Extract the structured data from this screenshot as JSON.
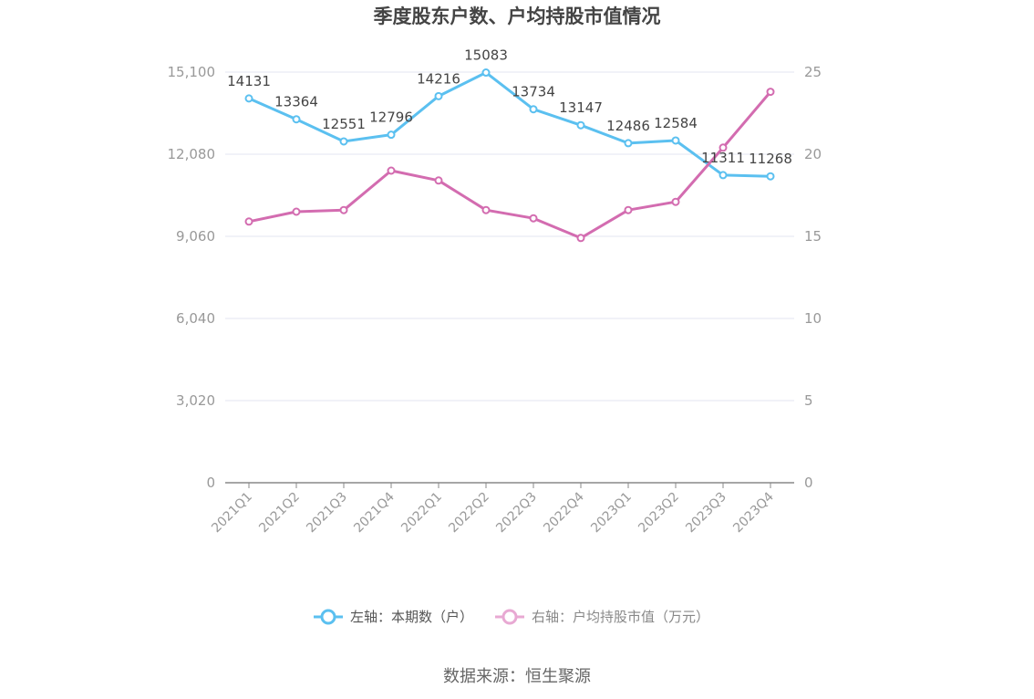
{
  "chart_data": {
    "type": "line",
    "title": "季度股东户数、户均持股市值情况",
    "categories": [
      "2021Q1",
      "2021Q2",
      "2021Q3",
      "2021Q4",
      "2022Q1",
      "2022Q2",
      "2022Q3",
      "2022Q4",
      "2023Q1",
      "2023Q2",
      "2023Q3",
      "2023Q4"
    ],
    "series": [
      {
        "name": "左轴：本期数（户）",
        "axis": "left",
        "color": "#5bc0f0",
        "values": [
          14131,
          13364,
          12551,
          12796,
          14216,
          15083,
          13734,
          13147,
          12486,
          12584,
          11311,
          11268
        ],
        "labels": [
          "14131",
          "13364",
          "12551",
          "12796",
          "14216",
          "15083",
          "13734",
          "13147",
          "12486",
          "12584",
          "11311",
          "11268"
        ]
      },
      {
        "name": "右轴：户均持股市值（万元）",
        "axis": "right",
        "color": "#d36cb0",
        "values": [
          15.9,
          16.5,
          16.6,
          19.0,
          18.4,
          16.6,
          16.1,
          14.9,
          16.6,
          17.1,
          20.4,
          23.8
        ]
      }
    ],
    "left_axis": {
      "ylim": [
        0,
        15100
      ],
      "ticks": [
        "0",
        "3,020",
        "6,040",
        "9,060",
        "12,080",
        "15,100"
      ]
    },
    "right_axis": {
      "ylim": [
        0,
        25
      ],
      "ticks": [
        "0",
        "5",
        "10",
        "15",
        "20",
        "25"
      ]
    },
    "grid": true,
    "legend_position": "bottom"
  },
  "source": "数据来源：恒生聚源"
}
